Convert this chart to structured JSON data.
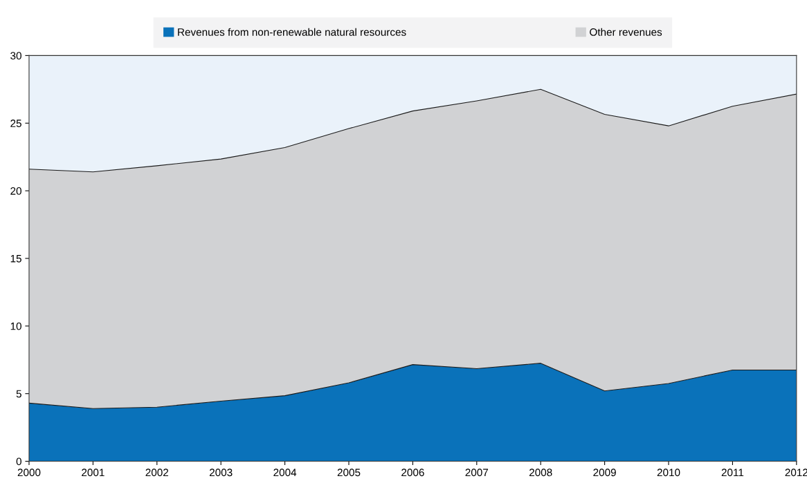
{
  "chart_data": {
    "type": "area",
    "stacked": true,
    "x": [
      2000,
      2001,
      2002,
      2003,
      2004,
      2005,
      2006,
      2007,
      2008,
      2009,
      2010,
      2011,
      2012
    ],
    "series": [
      {
        "name": "Revenues from non-renewable natural resources",
        "color": "#0a72ba",
        "values": [
          4.3,
          3.9,
          4.0,
          4.45,
          4.85,
          5.8,
          7.15,
          6.85,
          7.25,
          5.2,
          5.75,
          6.75,
          6.75
        ]
      },
      {
        "name": "Other revenues",
        "color": "#d1d2d4",
        "values": [
          17.3,
          17.5,
          17.85,
          17.9,
          18.35,
          18.8,
          18.75,
          19.8,
          20.25,
          20.45,
          19.05,
          19.5,
          20.4
        ]
      }
    ],
    "xlim": [
      2000,
      2012
    ],
    "xticks": [
      2000,
      2001,
      2002,
      2003,
      2004,
      2005,
      2006,
      2007,
      2008,
      2009,
      2010,
      2011,
      2012
    ],
    "ylim": [
      0,
      30
    ],
    "yticks": [
      0,
      5,
      10,
      15,
      20,
      25,
      30
    ],
    "grid": false,
    "legend": "top"
  }
}
